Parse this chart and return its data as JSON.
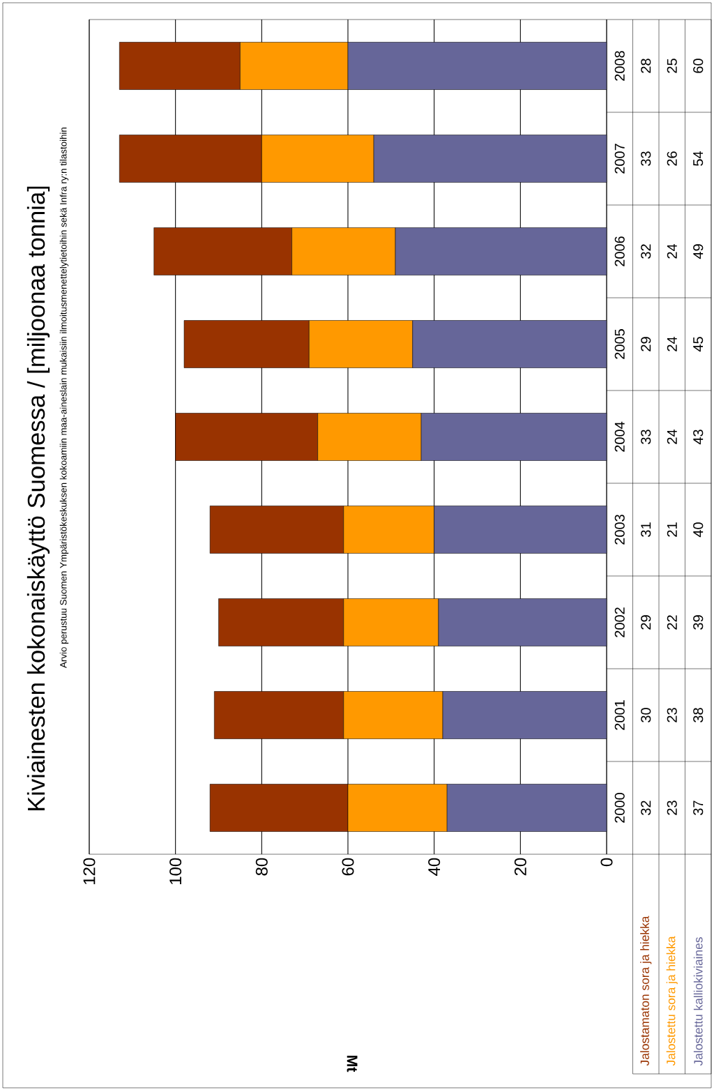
{
  "chart_data": {
    "type": "bar",
    "stacked": true,
    "orientation": "horizontal",
    "title": "Kiviainesten kokonaiskäyttö Suomessa / [miljoonaa tonnia]",
    "subtitle": "Arvio perustuu Suomen Ympäristökeskuksen kokoamiin maa-aineslain mukaisiin ilmoitusmenettelytietoihin  sekä Infra ry:n tilastoihin",
    "annotations": [
      "Mt"
    ],
    "categories": [
      "2008",
      "2007",
      "2006",
      "2005",
      "2004",
      "2003",
      "2002",
      "2001",
      "2000"
    ],
    "series": [
      {
        "name": "Jalostettu kalliokiviaines",
        "color": "#666699",
        "values": [
          60,
          54,
          49,
          45,
          43,
          40,
          39,
          38,
          37
        ]
      },
      {
        "name": "Jalostettu sora ja hiekka",
        "color": "#ff9900",
        "values": [
          25,
          26,
          24,
          24,
          24,
          21,
          22,
          23,
          23
        ]
      },
      {
        "name": "Jalostamaton sora ja hiekka",
        "color": "#993300",
        "values": [
          28,
          33,
          32,
          29,
          33,
          31,
          29,
          30,
          32
        ]
      }
    ],
    "xlim": [
      120,
      0
    ],
    "xticks": [
      0,
      20,
      40,
      60,
      80,
      100,
      120
    ],
    "grid": "x",
    "legend": "bottom",
    "data_labels": true
  }
}
